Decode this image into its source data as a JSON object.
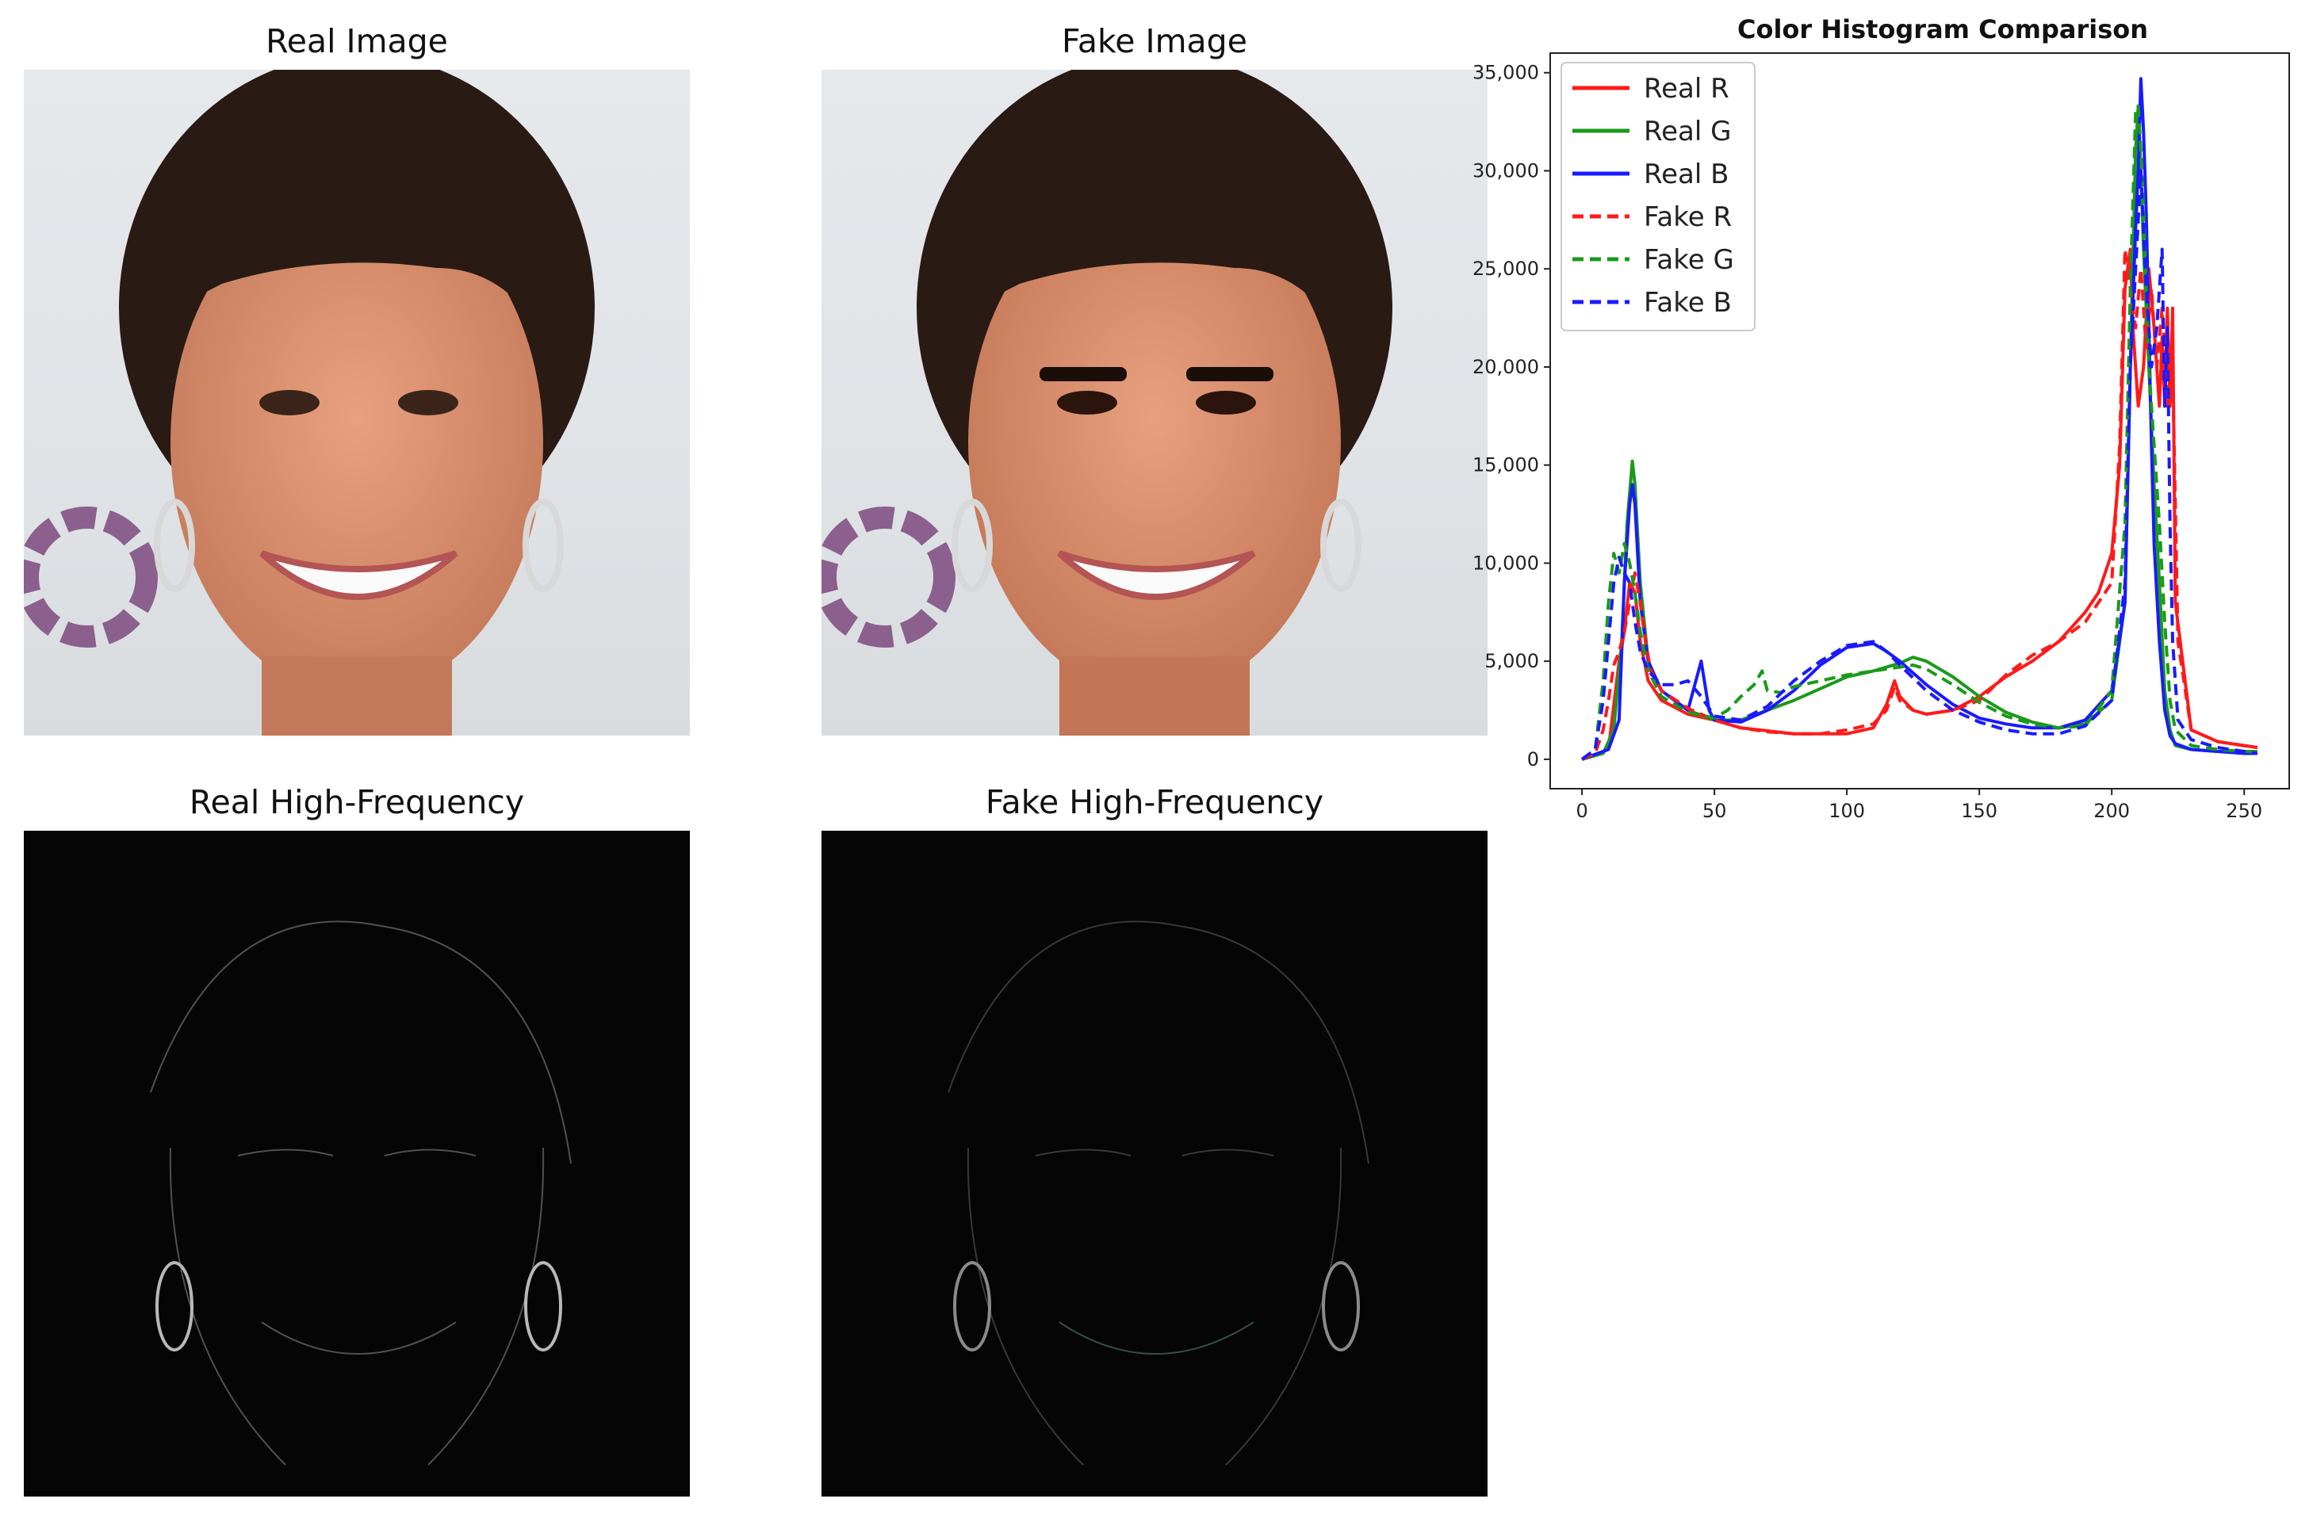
{
  "panels": {
    "real_image": {
      "title": "Real Image"
    },
    "fake_image": {
      "title": "Fake Image"
    },
    "real_hf": {
      "title": "Real High-Frequency"
    },
    "fake_hf": {
      "title": "Fake High-Frequency"
    }
  },
  "chart_data": {
    "type": "line",
    "title": "Color Histogram Comparison",
    "xlabel": "",
    "ylabel": "",
    "xlim": [
      0,
      255
    ],
    "ylim": [
      0,
      36000
    ],
    "xticks": [
      0,
      50,
      100,
      150,
      200,
      250
    ],
    "yticks": [
      0,
      5000,
      10000,
      15000,
      20000,
      25000,
      30000,
      35000
    ],
    "ytick_labels": [
      "0",
      "5,000",
      "10,000",
      "15,000",
      "20,000",
      "25,000",
      "30,000",
      "35,000"
    ],
    "legend_position": "top-left",
    "grid": false,
    "series": [
      {
        "name": "Real R",
        "color": "#ff1a1a",
        "dash": "solid",
        "x": [
          0,
          10,
          14,
          16,
          18,
          20,
          22,
          25,
          30,
          40,
          50,
          60,
          80,
          100,
          110,
          115,
          118,
          120,
          125,
          130,
          140,
          150,
          160,
          170,
          180,
          190,
          195,
          200,
          203,
          205,
          207,
          208,
          210,
          212,
          214,
          216,
          218,
          219,
          220,
          221,
          222,
          223,
          224,
          230,
          240,
          250,
          255
        ],
        "y": [
          0,
          500,
          5000,
          6500,
          9000,
          8500,
          6000,
          4000,
          3000,
          2300,
          2000,
          1600,
          1300,
          1300,
          1600,
          2800,
          4000,
          3200,
          2500,
          2300,
          2500,
          3200,
          4200,
          5000,
          6000,
          7500,
          8500,
          10500,
          15000,
          24000,
          26000,
          22000,
          18000,
          20000,
          25000,
          22000,
          18000,
          21500,
          18000,
          23000,
          18000,
          23000,
          8000,
          1500,
          900,
          700,
          600
        ]
      },
      {
        "name": "Real G",
        "color": "#1a9a1a",
        "dash": "solid",
        "x": [
          0,
          8,
          12,
          15,
          17,
          19,
          20,
          22,
          25,
          30,
          40,
          50,
          60,
          70,
          80,
          90,
          100,
          110,
          120,
          125,
          130,
          140,
          150,
          160,
          170,
          180,
          190,
          200,
          205,
          207,
          209,
          210,
          211,
          212,
          213,
          214,
          215,
          216,
          218,
          220,
          222,
          224,
          230,
          240,
          250,
          255
        ],
        "y": [
          0,
          300,
          1500,
          6000,
          12000,
          15200,
          14000,
          9000,
          5000,
          3500,
          2500,
          2000,
          2000,
          2500,
          3000,
          3600,
          4200,
          4500,
          4900,
          5200,
          5000,
          4200,
          3200,
          2400,
          1900,
          1600,
          1800,
          3000,
          8000,
          20000,
          31000,
          33300,
          30000,
          26000,
          23000,
          20000,
          17000,
          14000,
          9000,
          3500,
          1500,
          700,
          500,
          400,
          400,
          400
        ]
      },
      {
        "name": "Real B",
        "color": "#1a1aff",
        "dash": "solid",
        "x": [
          0,
          10,
          14,
          16,
          18,
          19,
          20,
          22,
          25,
          30,
          35,
          40,
          43,
          45,
          48,
          50,
          60,
          70,
          80,
          90,
          100,
          110,
          115,
          120,
          130,
          140,
          150,
          160,
          170,
          180,
          190,
          200,
          205,
          207,
          209,
          210,
          211,
          212,
          213,
          214,
          215,
          216,
          218,
          220,
          222,
          224,
          230,
          240,
          250,
          255
        ],
        "y": [
          0,
          500,
          2000,
          9000,
          13000,
          14000,
          13000,
          8000,
          5000,
          3500,
          3000,
          2500,
          4000,
          5000,
          2500,
          2000,
          1900,
          2500,
          3500,
          4800,
          5700,
          5900,
          5500,
          5000,
          3800,
          2800,
          2100,
          1800,
          1600,
          1600,
          2000,
          3500,
          8000,
          20000,
          27000,
          30000,
          34700,
          32000,
          28000,
          22000,
          16000,
          11000,
          6000,
          2500,
          1200,
          800,
          500,
          400,
          300,
          300
        ]
      },
      {
        "name": "Fake R",
        "color": "#ff1a1a",
        "dash": "dashed",
        "x": [
          0,
          5,
          8,
          10,
          12,
          14,
          16,
          18,
          20,
          22,
          24,
          26,
          30,
          40,
          50,
          60,
          70,
          80,
          90,
          100,
          110,
          115,
          118,
          120,
          125,
          130,
          140,
          150,
          160,
          170,
          180,
          190,
          200,
          203,
          205,
          207,
          209,
          211,
          213,
          215,
          217,
          219,
          221,
          223,
          225,
          230,
          240,
          250,
          255
        ],
        "y": [
          0,
          300,
          1500,
          3000,
          4800,
          5500,
          6500,
          8000,
          9500,
          8000,
          6000,
          4500,
          3500,
          2600,
          2000,
          1600,
          1400,
          1300,
          1300,
          1500,
          1800,
          2500,
          3700,
          3000,
          2500,
          2300,
          2500,
          3000,
          4300,
          5300,
          6000,
          7000,
          9000,
          16000,
          26000,
          24000,
          22000,
          25000,
          21000,
          24000,
          20000,
          23000,
          18000,
          20000,
          6000,
          1500,
          900,
          700,
          600
        ]
      },
      {
        "name": "Fake G",
        "color": "#1a9a1a",
        "dash": "dashed",
        "x": [
          0,
          5,
          8,
          10,
          12,
          14,
          16,
          18,
          20,
          22,
          25,
          30,
          40,
          50,
          55,
          60,
          65,
          68,
          70,
          75,
          80,
          90,
          100,
          110,
          120,
          125,
          130,
          140,
          150,
          160,
          170,
          180,
          190,
          200,
          205,
          207,
          209,
          210,
          211,
          212,
          213,
          214,
          216,
          218,
          220,
          222,
          224,
          230,
          240,
          250,
          255
        ],
        "y": [
          0,
          500,
          4000,
          8000,
          10500,
          9500,
          11000,
          10000,
          8500,
          6500,
          4500,
          3200,
          2400,
          2100,
          2500,
          3200,
          3800,
          4500,
          3500,
          3400,
          3700,
          4000,
          4300,
          4500,
          4700,
          4800,
          4600,
          3800,
          2900,
          2200,
          1800,
          1600,
          1700,
          3500,
          12000,
          24000,
          33000,
          33300,
          31000,
          28000,
          24000,
          20000,
          16000,
          12000,
          7000,
          3000,
          1500,
          700,
          500,
          400,
          400
        ]
      },
      {
        "name": "Fake B",
        "color": "#1a1aff",
        "dash": "dashed",
        "x": [
          0,
          5,
          8,
          10,
          12,
          14,
          16,
          18,
          20,
          22,
          25,
          30,
          35,
          40,
          45,
          50,
          60,
          70,
          80,
          90,
          100,
          110,
          115,
          120,
          130,
          140,
          150,
          160,
          170,
          180,
          190,
          200,
          205,
          207,
          209,
          211,
          213,
          215,
          217,
          219,
          220,
          221,
          222,
          223,
          225,
          230,
          240,
          250,
          255
        ],
        "y": [
          0,
          500,
          3000,
          6000,
          9000,
          10300,
          9500,
          9000,
          7000,
          5500,
          4500,
          3800,
          3800,
          4000,
          3200,
          2200,
          2000,
          2700,
          4000,
          5000,
          5800,
          6000,
          5500,
          4800,
          3500,
          2500,
          1900,
          1500,
          1300,
          1300,
          1700,
          3000,
          9000,
          20000,
          25000,
          30000,
          24000,
          20000,
          22000,
          26000,
          18000,
          22000,
          12000,
          6000,
          2000,
          1000,
          600,
          400,
          300
        ]
      }
    ]
  }
}
